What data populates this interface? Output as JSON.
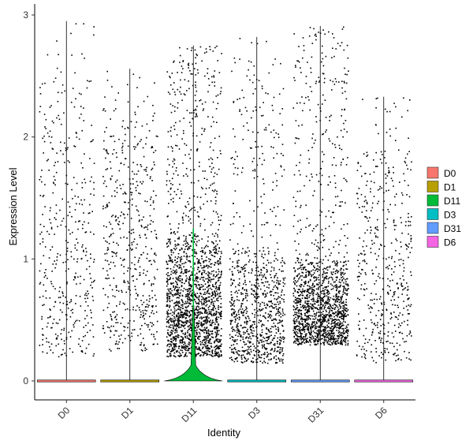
{
  "chart_data": {
    "type": "violin",
    "title": "",
    "xlabel": "Identity",
    "ylabel": "Expression Level",
    "ylim": [
      -0.15,
      3.05
    ],
    "yticks": [
      0,
      1,
      2,
      3
    ],
    "categories": [
      "D0",
      "D1",
      "D11",
      "D3",
      "D31",
      "D6"
    ],
    "legend": {
      "position": "right",
      "entries": [
        "D0",
        "D1",
        "D11",
        "D3",
        "D31",
        "D6"
      ]
    },
    "series": [
      {
        "name": "D0",
        "color": "#F8766D",
        "max": 2.95,
        "jitter_points": 420,
        "dense_band": [
          0.2,
          2.5
        ]
      },
      {
        "name": "D1",
        "color": "#B79F00",
        "max": 2.56,
        "jitter_points": 520,
        "dense_band": [
          0.25,
          2.3
        ]
      },
      {
        "name": "D11",
        "color": "#00BA38",
        "max": 2.75,
        "jitter_points": 1900,
        "dense_band": [
          0.2,
          1.2
        ]
      },
      {
        "name": "D3",
        "color": "#00BFC4",
        "max": 2.82,
        "jitter_points": 950,
        "dense_band": [
          0.15,
          1.1
        ]
      },
      {
        "name": "D31",
        "color": "#619CFF",
        "max": 2.91,
        "jitter_points": 1600,
        "dense_band": [
          0.3,
          1.0
        ]
      },
      {
        "name": "D6",
        "color": "#F564E3",
        "max": 2.33,
        "jitter_points": 480,
        "dense_band": [
          0.15,
          1.9
        ]
      }
    ],
    "grid": false
  }
}
